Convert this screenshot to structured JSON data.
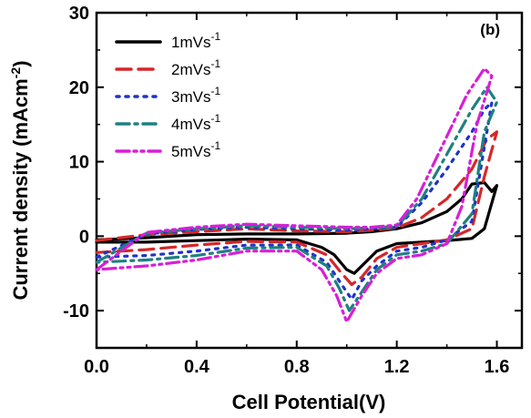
{
  "chart_data": {
    "type": "line",
    "panel_label": "(b)",
    "xlabel": "Cell Potential(V)",
    "ylabel": "Current density (mAcm",
    "ylabel_sup": "-2",
    "ylabel_close": ")",
    "xlim": [
      0.0,
      1.7
    ],
    "ylim": [
      -15,
      30
    ],
    "xticks": [
      0.0,
      0.4,
      0.8,
      1.2,
      1.6
    ],
    "yticks": [
      -10,
      0,
      10,
      20,
      30
    ],
    "xtick_labels": [
      "0.0",
      "0.4",
      "0.8",
      "1.2",
      "1.6"
    ],
    "ytick_labels": [
      "-10",
      "0",
      "10",
      "20",
      "30"
    ],
    "legend_position": "top-left",
    "series": [
      {
        "name": "1mVs",
        "name_sup": "-1",
        "color": "#000000",
        "dash": "solid",
        "forward": [
          [
            0.0,
            -0.5
          ],
          [
            0.2,
            -0.2
          ],
          [
            0.4,
            0.2
          ],
          [
            0.6,
            0.3
          ],
          [
            0.8,
            0.3
          ],
          [
            1.0,
            0.4
          ],
          [
            1.1,
            0.6
          ],
          [
            1.2,
            1.0
          ],
          [
            1.3,
            1.8
          ],
          [
            1.4,
            3.3
          ],
          [
            1.46,
            5.0
          ],
          [
            1.5,
            7.0
          ],
          [
            1.55,
            7.2
          ],
          [
            1.58,
            6.0
          ],
          [
            1.6,
            6.8
          ]
        ],
        "reverse": [
          [
            1.6,
            5.5
          ],
          [
            1.55,
            1.0
          ],
          [
            1.5,
            -0.3
          ],
          [
            1.4,
            -0.6
          ],
          [
            1.3,
            -0.8
          ],
          [
            1.2,
            -1.0
          ],
          [
            1.12,
            -2.0
          ],
          [
            1.06,
            -4.0
          ],
          [
            1.03,
            -5.0
          ],
          [
            1.0,
            -4.5
          ],
          [
            0.95,
            -2.5
          ],
          [
            0.9,
            -1.5
          ],
          [
            0.8,
            -0.5
          ],
          [
            0.6,
            -0.4
          ],
          [
            0.4,
            -0.6
          ],
          [
            0.2,
            -0.8
          ],
          [
            0.0,
            -0.8
          ]
        ]
      },
      {
        "name": "2mVs",
        "name_sup": "-1",
        "color": "#d62728",
        "dash": "longdash",
        "forward": [
          [
            0.0,
            -0.6
          ],
          [
            0.2,
            0.2
          ],
          [
            0.4,
            0.6
          ],
          [
            0.6,
            1.0
          ],
          [
            0.8,
            0.7
          ],
          [
            1.0,
            0.6
          ],
          [
            1.1,
            0.8
          ],
          [
            1.2,
            1.1
          ],
          [
            1.3,
            2.5
          ],
          [
            1.4,
            5.0
          ],
          [
            1.5,
            9.0
          ],
          [
            1.56,
            13.0
          ],
          [
            1.6,
            14.0
          ]
        ],
        "reverse": [
          [
            1.6,
            14.0
          ],
          [
            1.55,
            8.0
          ],
          [
            1.5,
            1.0
          ],
          [
            1.4,
            -0.5
          ],
          [
            1.3,
            -1.0
          ],
          [
            1.2,
            -1.5
          ],
          [
            1.12,
            -3.0
          ],
          [
            1.06,
            -5.5
          ],
          [
            1.02,
            -6.5
          ],
          [
            0.98,
            -5.0
          ],
          [
            0.92,
            -2.5
          ],
          [
            0.8,
            -0.8
          ],
          [
            0.6,
            -0.7
          ],
          [
            0.4,
            -1.2
          ],
          [
            0.2,
            -1.8
          ],
          [
            0.0,
            -2.2
          ]
        ]
      },
      {
        "name": "3mVs",
        "name_sup": "-1",
        "color": "#1f33c8",
        "dash": "dot",
        "forward": [
          [
            0.0,
            -2.8
          ],
          [
            0.2,
            0.3
          ],
          [
            0.4,
            0.9
          ],
          [
            0.6,
            1.2
          ],
          [
            0.8,
            1.0
          ],
          [
            1.0,
            0.8
          ],
          [
            1.1,
            1.0
          ],
          [
            1.2,
            1.2
          ],
          [
            1.3,
            4.5
          ],
          [
            1.4,
            9.0
          ],
          [
            1.5,
            14.0
          ],
          [
            1.55,
            17.0
          ],
          [
            1.58,
            18.0
          ]
        ],
        "reverse": [
          [
            1.58,
            18.0
          ],
          [
            1.55,
            12.0
          ],
          [
            1.5,
            2.0
          ],
          [
            1.4,
            -0.5
          ],
          [
            1.3,
            -1.5
          ],
          [
            1.2,
            -2.0
          ],
          [
            1.12,
            -4.0
          ],
          [
            1.06,
            -6.0
          ],
          [
            1.02,
            -8.5
          ],
          [
            0.98,
            -6.5
          ],
          [
            0.92,
            -3.5
          ],
          [
            0.8,
            -1.2
          ],
          [
            0.6,
            -1.2
          ],
          [
            0.4,
            -2.0
          ],
          [
            0.2,
            -2.6
          ],
          [
            0.0,
            -2.8
          ]
        ]
      },
      {
        "name": "4mVs",
        "name_sup": "-1",
        "color": "#1f8080",
        "dash": "dashdot",
        "forward": [
          [
            0.0,
            -3.5
          ],
          [
            0.2,
            0.4
          ],
          [
            0.4,
            1.0
          ],
          [
            0.6,
            1.4
          ],
          [
            0.8,
            1.2
          ],
          [
            1.0,
            1.0
          ],
          [
            1.1,
            1.1
          ],
          [
            1.2,
            1.3
          ],
          [
            1.3,
            5.0
          ],
          [
            1.4,
            11.0
          ],
          [
            1.5,
            17.0
          ],
          [
            1.56,
            20.0
          ],
          [
            1.6,
            18.0
          ]
        ],
        "reverse": [
          [
            1.6,
            18.0
          ],
          [
            1.55,
            14.0
          ],
          [
            1.5,
            3.0
          ],
          [
            1.4,
            -1.0
          ],
          [
            1.3,
            -2.0
          ],
          [
            1.2,
            -2.5
          ],
          [
            1.12,
            -4.5
          ],
          [
            1.06,
            -7.5
          ],
          [
            1.01,
            -10.0
          ],
          [
            0.97,
            -7.0
          ],
          [
            0.92,
            -4.0
          ],
          [
            0.8,
            -1.5
          ],
          [
            0.6,
            -1.6
          ],
          [
            0.4,
            -2.6
          ],
          [
            0.2,
            -3.2
          ],
          [
            0.0,
            -3.5
          ]
        ]
      },
      {
        "name": "5mVs",
        "name_sup": "-1",
        "color": "#d81ed8",
        "dash": "dashdotdot",
        "forward": [
          [
            0.0,
            -4.5
          ],
          [
            0.2,
            0.5
          ],
          [
            0.4,
            1.2
          ],
          [
            0.6,
            1.6
          ],
          [
            0.8,
            1.4
          ],
          [
            1.0,
            1.2
          ],
          [
            1.1,
            1.2
          ],
          [
            1.2,
            1.5
          ],
          [
            1.28,
            5.0
          ],
          [
            1.38,
            12.0
          ],
          [
            1.48,
            19.0
          ],
          [
            1.55,
            22.5
          ],
          [
            1.58,
            21.5
          ]
        ],
        "reverse": [
          [
            1.58,
            21.5
          ],
          [
            1.52,
            15.0
          ],
          [
            1.46,
            4.0
          ],
          [
            1.4,
            -1.0
          ],
          [
            1.3,
            -2.5
          ],
          [
            1.2,
            -3.0
          ],
          [
            1.12,
            -5.0
          ],
          [
            1.06,
            -8.0
          ],
          [
            1.0,
            -11.5
          ],
          [
            0.96,
            -8.0
          ],
          [
            0.9,
            -4.5
          ],
          [
            0.8,
            -2.0
          ],
          [
            0.6,
            -2.0
          ],
          [
            0.4,
            -3.2
          ],
          [
            0.2,
            -4.0
          ],
          [
            0.0,
            -4.5
          ]
        ]
      }
    ]
  }
}
